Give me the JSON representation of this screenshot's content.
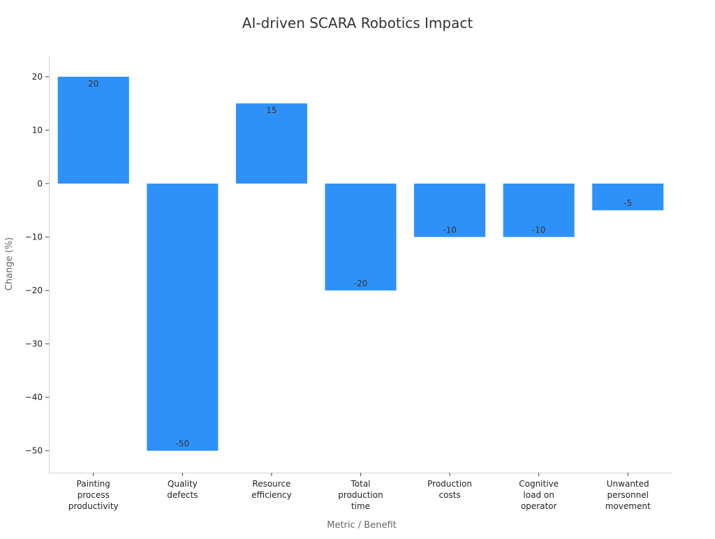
{
  "chart_data": {
    "type": "bar",
    "title": "AI-driven SCARA Robotics Impact",
    "xlabel": "Metric / Benefit",
    "ylabel": "Change (%)",
    "categories": [
      [
        "Painting",
        "process",
        "productivity"
      ],
      [
        "Quality",
        "defects"
      ],
      [
        "Resource",
        "efficiency"
      ],
      [
        "Total",
        "production",
        "time"
      ],
      [
        "Production",
        "costs"
      ],
      [
        "Cognitive",
        "load on",
        "operator"
      ],
      [
        "Unwanted",
        "personnel",
        "movement"
      ]
    ],
    "values": [
      20,
      -50,
      15,
      -20,
      -10,
      -10,
      -5
    ],
    "data_labels": [
      "20",
      "-50",
      "15",
      "-20",
      "-10",
      "-10",
      "-5"
    ],
    "ylim": [
      -54.1,
      23.9
    ],
    "yticks": [
      20,
      10,
      0,
      -10,
      -20,
      -30,
      -40,
      -50
    ],
    "ytick_labels": [
      "20",
      "10",
      "0",
      "−10",
      "−20",
      "−30",
      "−40",
      "−50"
    ],
    "grid": false,
    "bar_color": "#2e91f8"
  }
}
